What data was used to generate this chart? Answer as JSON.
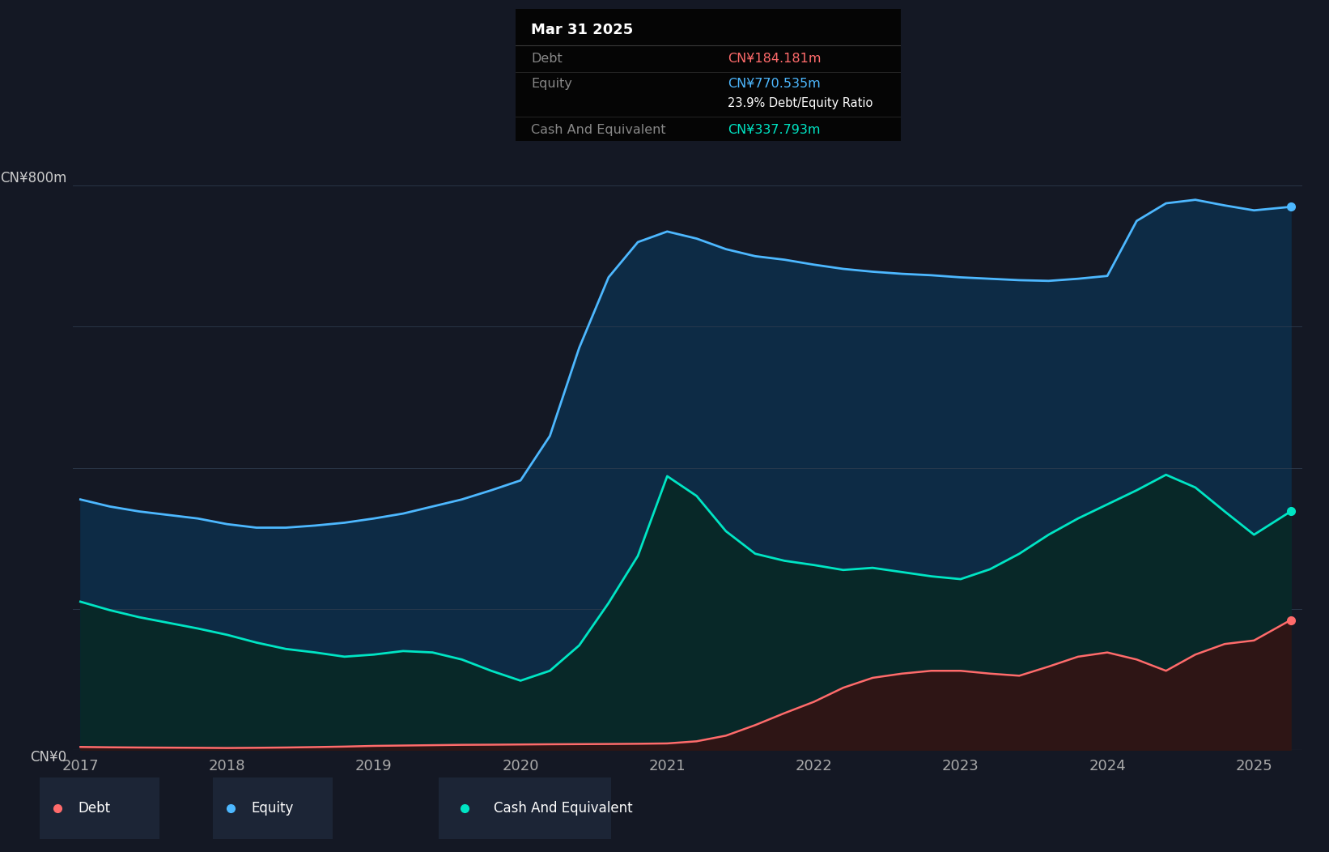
{
  "bg_color": "#141824",
  "plot_bg_color": "#141824",
  "grid_color": "#2e3d4f",
  "tooltip_bg": "#050505",
  "equity_color": "#4db8ff",
  "equity_fill": "#0d2b45",
  "debt_color": "#ff6b6b",
  "debt_fill": "#2e1515",
  "cash_color": "#00e5c4",
  "cash_fill": "#082828",
  "ylabel": "CN¥800m",
  "y0label": "CN¥0",
  "ylim": [
    0,
    870
  ],
  "y_800_val": 800,
  "tooltip_title": "Mar 31 2025",
  "tooltip_debt_label": "Debt",
  "tooltip_debt_value": "CN¥184.181m",
  "tooltip_equity_label": "Equity",
  "tooltip_equity_value": "CN¥770.535m",
  "tooltip_ratio": "23.9% Debt/Equity Ratio",
  "tooltip_cash_label": "Cash And Equivalent",
  "tooltip_cash_value": "CN¥337.793m",
  "legend_items": [
    "Debt",
    "Equity",
    "Cash And Equivalent"
  ],
  "legend_colors": [
    "#ff6b6b",
    "#4db8ff",
    "#00e5c4"
  ],
  "legend_bg": "#1c2536",
  "years": [
    2017.0,
    2017.2,
    2017.4,
    2017.6,
    2017.8,
    2018.0,
    2018.2,
    2018.4,
    2018.6,
    2018.8,
    2019.0,
    2019.2,
    2019.4,
    2019.6,
    2019.8,
    2020.0,
    2020.2,
    2020.4,
    2020.6,
    2020.8,
    2021.0,
    2021.2,
    2021.4,
    2021.6,
    2021.8,
    2022.0,
    2022.2,
    2022.4,
    2022.6,
    2022.8,
    2023.0,
    2023.2,
    2023.4,
    2023.6,
    2023.8,
    2024.0,
    2024.2,
    2024.4,
    2024.6,
    2024.8,
    2025.0,
    2025.25
  ],
  "equity": [
    355,
    345,
    338,
    333,
    328,
    320,
    315,
    315,
    318,
    322,
    328,
    335,
    345,
    355,
    368,
    382,
    445,
    570,
    670,
    720,
    735,
    725,
    710,
    700,
    695,
    688,
    682,
    678,
    675,
    673,
    670,
    668,
    666,
    665,
    668,
    672,
    750,
    775,
    780,
    772,
    765,
    770
  ],
  "cash": [
    210,
    198,
    188,
    180,
    172,
    163,
    152,
    143,
    138,
    132,
    135,
    140,
    138,
    128,
    112,
    98,
    112,
    148,
    208,
    275,
    388,
    360,
    310,
    278,
    268,
    262,
    255,
    258,
    252,
    246,
    242,
    256,
    278,
    305,
    328,
    348,
    368,
    390,
    372,
    338,
    305,
    338
  ],
  "debt": [
    4,
    3.5,
    3.2,
    3.0,
    2.8,
    2.5,
    2.8,
    3.2,
    3.8,
    4.5,
    5.5,
    6.0,
    6.5,
    7.0,
    7.2,
    7.5,
    7.8,
    8.0,
    8.2,
    8.5,
    9.0,
    12,
    20,
    35,
    52,
    68,
    88,
    102,
    108,
    112,
    112,
    108,
    105,
    118,
    132,
    138,
    128,
    112,
    135,
    150,
    155,
    184
  ],
  "xticks": [
    2017,
    2018,
    2019,
    2020,
    2021,
    2022,
    2023,
    2024,
    2025
  ]
}
